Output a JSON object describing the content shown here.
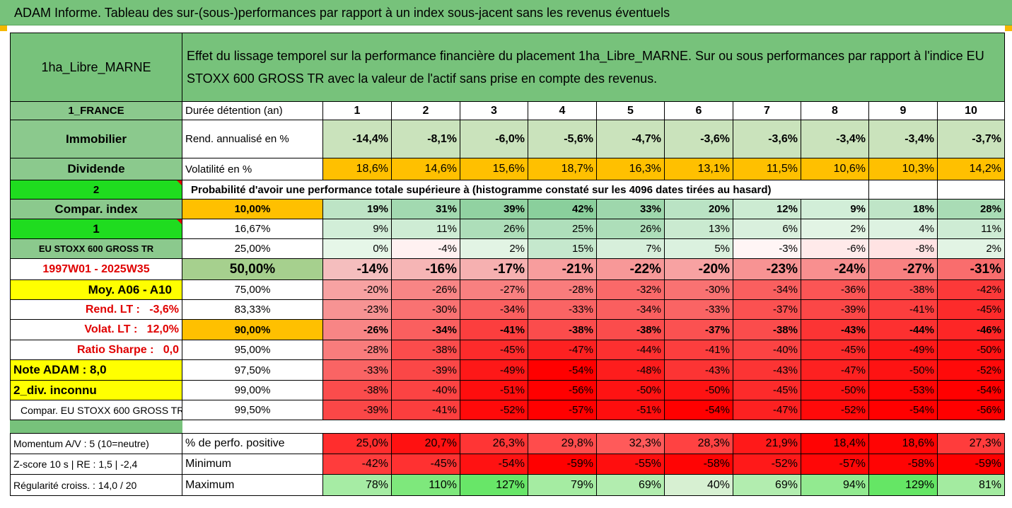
{
  "banner": "ADAM Informe. Tableau des sur-(sous-)performances par rapport à un index sous-jacent sans les revenus éventuels",
  "header": {
    "asset": "1ha_Libre_MARNE",
    "description": "Effet du lissage temporel sur la performance financière du placement 1ha_Libre_MARNE. Sur ou sous performances par rapport à l'indice EU STOXX 600 GROSS TR avec la valeur de l'actif sans prise en compte des revenus."
  },
  "colors": {
    "green_header": "#77c27b",
    "bright_green": "#1fdc1f",
    "yellow": "#ffff00",
    "orange": "#ffc000",
    "red_text": "#e00000"
  },
  "left": {
    "country": "1_FRANCE",
    "category": "Immobilier",
    "dividend": "Dividende",
    "num2": "2",
    "compar_index": "Compar. index",
    "num1": "1",
    "index_name": "EU STOXX 600 GROSS TR",
    "period": "1997W01 - 2025W35",
    "moy": "Moy. A06 - A10",
    "rend_lt": "Rend. LT :   -3,6%",
    "volat_lt": "Volat. LT :   12,0%",
    "sharpe": "Ratio Sharpe :   0,0",
    "note": "Note ADAM : 8,0",
    "div": "2_div. inconnu",
    "compar_full": "Compar. EU STOXX 600 GROSS TR",
    "momentum": "Momentum A/V : 5 (10=neutre)",
    "zscore": "Z-score 10 s  |  RE : 1,5  |  -2,4",
    "regularite": "Régularité croiss. : 14,0 / 20"
  },
  "rows": {
    "duree_label": "Durée détention (an)",
    "years": [
      "1",
      "2",
      "3",
      "4",
      "5",
      "6",
      "7",
      "8",
      "9",
      "10"
    ],
    "rend_label": "Rend. annualisé en %",
    "rend": [
      "-14,4%",
      "-8,1%",
      "-6,0%",
      "-5,6%",
      "-4,7%",
      "-3,6%",
      "-3,6%",
      "-3,4%",
      "-3,4%",
      "-3,7%"
    ],
    "vol_label": "Volatilité en %",
    "vol": [
      "18,6%",
      "14,6%",
      "15,6%",
      "18,7%",
      "16,3%",
      "13,1%",
      "11,5%",
      "10,6%",
      "10,3%",
      "14,2%"
    ],
    "prob_label": "Probabilité d'avoir une performance totale supérieure à (histogramme constaté sur les 4096 dates tirées au hasard)",
    "pcts": [
      {
        "p": "10,00%",
        "vals": [
          "19%",
          "31%",
          "39%",
          "42%",
          "33%",
          "20%",
          "12%",
          "9%",
          "18%",
          "28%"
        ]
      },
      {
        "p": "16,67%",
        "vals": [
          "9%",
          "11%",
          "26%",
          "25%",
          "26%",
          "13%",
          "6%",
          "2%",
          "4%",
          "11%"
        ]
      },
      {
        "p": "25,00%",
        "vals": [
          "0%",
          "-4%",
          "2%",
          "15%",
          "7%",
          "5%",
          "-3%",
          "-6%",
          "-8%",
          "2%"
        ]
      },
      {
        "p": "50,00%",
        "vals": [
          "-14%",
          "-16%",
          "-17%",
          "-21%",
          "-22%",
          "-20%",
          "-23%",
          "-24%",
          "-27%",
          "-31%"
        ]
      },
      {
        "p": "75,00%",
        "vals": [
          "-20%",
          "-26%",
          "-27%",
          "-28%",
          "-32%",
          "-30%",
          "-34%",
          "-36%",
          "-38%",
          "-42%"
        ]
      },
      {
        "p": "83,33%",
        "vals": [
          "-23%",
          "-30%",
          "-34%",
          "-33%",
          "-34%",
          "-33%",
          "-37%",
          "-39%",
          "-41%",
          "-45%"
        ]
      },
      {
        "p": "90,00%",
        "vals": [
          "-26%",
          "-34%",
          "-41%",
          "-38%",
          "-38%",
          "-37%",
          "-38%",
          "-43%",
          "-44%",
          "-46%"
        ]
      },
      {
        "p": "95,00%",
        "vals": [
          "-28%",
          "-38%",
          "-45%",
          "-47%",
          "-44%",
          "-41%",
          "-40%",
          "-45%",
          "-49%",
          "-50%"
        ]
      },
      {
        "p": "97,50%",
        "vals": [
          "-33%",
          "-39%",
          "-49%",
          "-54%",
          "-48%",
          "-43%",
          "-43%",
          "-47%",
          "-50%",
          "-52%"
        ]
      },
      {
        "p": "99,00%",
        "vals": [
          "-38%",
          "-40%",
          "-51%",
          "-56%",
          "-50%",
          "-50%",
          "-45%",
          "-50%",
          "-53%",
          "-54%"
        ]
      },
      {
        "p": "99,50%",
        "vals": [
          "-39%",
          "-41%",
          "-52%",
          "-57%",
          "-51%",
          "-54%",
          "-47%",
          "-52%",
          "-54%",
          "-56%"
        ]
      }
    ],
    "posperf_label": "% de perfo. positive",
    "posperf": [
      "25,0%",
      "20,7%",
      "26,3%",
      "29,8%",
      "32,3%",
      "28,3%",
      "21,9%",
      "18,4%",
      "18,6%",
      "27,3%"
    ],
    "min_label": "Minimum",
    "min": [
      "-42%",
      "-45%",
      "-54%",
      "-59%",
      "-55%",
      "-58%",
      "-52%",
      "-57%",
      "-58%",
      "-59%"
    ],
    "max_label": "Maximum",
    "max": [
      "78%",
      "110%",
      "127%",
      "79%",
      "69%",
      "40%",
      "69%",
      "94%",
      "129%",
      "81%"
    ]
  }
}
